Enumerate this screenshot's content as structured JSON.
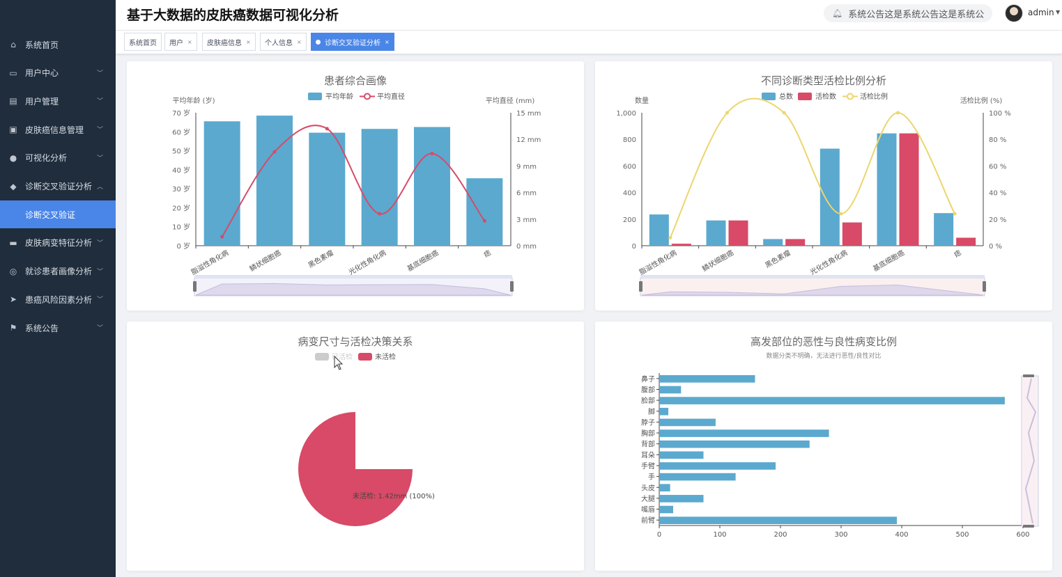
{
  "header": {
    "title": "基于大数据的皮肤癌数据可视化分析",
    "notice": "系统公告这是系统公告这是系统公",
    "user": "admin"
  },
  "sidebar": {
    "items": [
      {
        "label": "系统首页",
        "icon": "home-icon"
      },
      {
        "label": "用户中心",
        "icon": "card-icon",
        "chevron": true
      },
      {
        "label": "用户管理",
        "icon": "chart-icon",
        "chevron": true
      },
      {
        "label": "皮肤癌信息管理",
        "icon": "id-card-icon",
        "chevron": true
      },
      {
        "label": "可视化分析",
        "icon": "user-icon",
        "chevron": true
      },
      {
        "label": "诊断交叉验证分析",
        "icon": "location-icon",
        "chevron": true,
        "expanded": true
      },
      {
        "label": "诊断交叉验证",
        "sub": true,
        "active": true
      },
      {
        "label": "皮肤病变特征分析",
        "icon": "briefcase-icon",
        "chevron": true
      },
      {
        "label": "就诊患者画像分析",
        "icon": "target-icon",
        "chevron": true
      },
      {
        "label": "患癌风险因素分析",
        "icon": "send-icon",
        "chevron": true
      },
      {
        "label": "系统公告",
        "icon": "flag-icon",
        "chevron": true
      }
    ]
  },
  "tabs": [
    {
      "label": "系统首页",
      "closable": false
    },
    {
      "label": "用户",
      "closable": true
    },
    {
      "label": "皮肤癌信息",
      "closable": true
    },
    {
      "label": "个人信息",
      "closable": true
    },
    {
      "label": "诊断交叉验证分析",
      "closable": true,
      "active": true
    }
  ],
  "colors": {
    "blue": "#5ba9cf",
    "red": "#d84a67",
    "yellow": "#ecd66c",
    "sidebar": "#1f2d3d",
    "accent": "#4a86e8"
  },
  "chart_data": [
    {
      "type": "bar",
      "title": "患者综合画像",
      "categories": [
        "脂溢性角化病",
        "鳞状细胞癌",
        "黑色素瘤",
        "光化性角化病",
        "基底细胞癌",
        "痣"
      ],
      "series": [
        {
          "name": "平均年龄",
          "kind": "bar",
          "axis": "left",
          "values": [
            65.5,
            68.5,
            59.5,
            61.5,
            62.5,
            35.5
          ]
        },
        {
          "name": "平均直径",
          "kind": "line",
          "axis": "right",
          "values": [
            1.0,
            10.6,
            13.2,
            3.6,
            10.4,
            2.8
          ]
        }
      ],
      "ylabel_left": "平均年龄 (岁)",
      "ylabel_right": "平均直径 (mm)",
      "left_ticks": [
        "0 岁",
        "10 岁",
        "20 岁",
        "30 岁",
        "40 岁",
        "50 岁",
        "60 岁",
        "70 岁"
      ],
      "right_ticks": [
        "0 mm",
        "3 mm",
        "6 mm",
        "9 mm",
        "12 mm",
        "15 mm"
      ],
      "ylim_left": [
        0,
        70
      ],
      "ylim_right": [
        0,
        15
      ]
    },
    {
      "type": "bar",
      "title": "不同诊断类型活检比例分析",
      "categories": [
        "脂溢性角化病",
        "鳞状细胞癌",
        "黑色素瘤",
        "光化性角化病",
        "基底细胞癌",
        "痣"
      ],
      "series": [
        {
          "name": "总数",
          "kind": "bar",
          "axis": "left",
          "values": [
            235,
            190,
            50,
            730,
            845,
            245
          ]
        },
        {
          "name": "活检数",
          "kind": "bar",
          "axis": "left",
          "values": [
            15,
            190,
            50,
            175,
            845,
            60
          ]
        },
        {
          "name": "活检比例",
          "kind": "line",
          "axis": "right",
          "values": [
            6,
            100,
            100,
            24,
            100,
            24
          ]
        }
      ],
      "ylabel_left": "数量",
      "ylabel_right": "活检比例 (%)",
      "left_ticks": [
        "0",
        "200",
        "400",
        "600",
        "800",
        "1,000"
      ],
      "right_ticks": [
        "0 %",
        "20 %",
        "40 %",
        "60 %",
        "80 %",
        "100 %"
      ],
      "ylim_left": [
        0,
        1000
      ],
      "ylim_right": [
        0,
        100
      ]
    },
    {
      "type": "pie",
      "title": "病变尺寸与活检决策关系",
      "legend": [
        {
          "name": "已活检",
          "disabled": true
        },
        {
          "name": "未活检"
        }
      ],
      "slices": [
        {
          "name": "未活检",
          "value": 1.42,
          "percent": 100
        }
      ],
      "label": "未活检: 1.42mm (100%)"
    },
    {
      "type": "bar",
      "orientation": "horizontal",
      "title": "高发部位的恶性与良性病变比例",
      "subtitle": "数据分类不明确，无法进行恶性/良性对比",
      "categories": [
        "鼻子",
        "腹部",
        "脸部",
        "脚",
        "脖子",
        "胸部",
        "背部",
        "耳朵",
        "手臂",
        "手",
        "头皮",
        "大腿",
        "嘴唇",
        "前臂"
      ],
      "values": [
        158,
        36,
        570,
        15,
        93,
        280,
        248,
        73,
        192,
        126,
        18,
        73,
        23,
        392
      ],
      "x_ticks": [
        "0",
        "100",
        "200",
        "300",
        "400",
        "500",
        "600"
      ],
      "xlim": [
        0,
        600
      ]
    }
  ]
}
